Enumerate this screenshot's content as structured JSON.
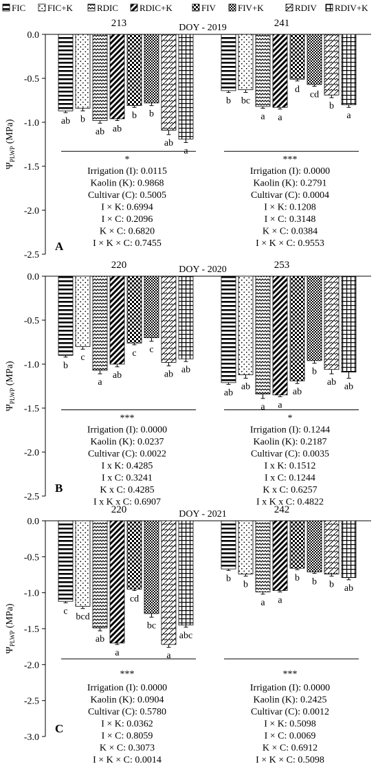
{
  "legend": [
    {
      "label": "FIC",
      "pattern": "hstripe"
    },
    {
      "label": "FIC+K",
      "pattern": "dots"
    },
    {
      "label": "RDIC",
      "pattern": "wave"
    },
    {
      "label": "RDIC+K",
      "pattern": "diag"
    },
    {
      "label": "FIV",
      "pattern": "check"
    },
    {
      "label": "FIV+K",
      "pattern": "fcheck"
    },
    {
      "label": "RDIV",
      "pattern": "zig"
    },
    {
      "label": "RDIV+K",
      "pattern": "grid"
    }
  ],
  "chart_data": [
    {
      "type": "bar",
      "panel_label": "A",
      "title": "DOY - 2019",
      "ylabel": "Ψ_PLWP (MPa)",
      "ylim": [
        -2.5,
        0
      ],
      "yticks": [
        "0.0",
        "-0.5",
        "-1.0",
        "-1.5",
        "-2.0",
        "-2.5"
      ],
      "categories": [
        "FIC",
        "FIC+K",
        "RDIC",
        "RDIC+K",
        "FIV",
        "FIV+K",
        "RDIV",
        "RDIV+K"
      ],
      "groups": [
        {
          "doy": "213",
          "values": [
            -0.87,
            -0.84,
            -0.98,
            -0.96,
            -0.81,
            -0.78,
            -1.09,
            -1.19
          ],
          "errors": [
            0.02,
            0.03,
            0.03,
            0.02,
            0.02,
            0.03,
            0.05,
            0.04
          ],
          "letters": [
            "ab",
            "b",
            "ab",
            "ab",
            "b",
            "b",
            "ab",
            "a"
          ],
          "significance": "*",
          "stats": [
            "Irrigation (I): 0.0115",
            "Kaolin (K): 0.9868",
            "Cultivar (C): 0.5005",
            "I × K: 0.6994",
            "I  × C: 0.2096",
            "K × C: 0.6820",
            "I × K × C: 0.7455"
          ]
        },
        {
          "doy": "241",
          "values": [
            -0.64,
            -0.63,
            -0.82,
            -0.83,
            -0.51,
            -0.57,
            -0.69,
            -0.8
          ],
          "errors": [
            0.02,
            0.03,
            0.02,
            0.02,
            0.02,
            0.02,
            0.03,
            0.03
          ],
          "letters": [
            "b",
            "bc",
            "a",
            "a",
            "d",
            "cd",
            "b",
            "a"
          ],
          "significance": "***",
          "stats": [
            "Irrigation (I): 0.0000",
            "Kaolin (K): 0.2791",
            "Cultivar (C): 0.0004",
            "I × K: 0.1208",
            "I  × C: 0.3148",
            "K × C: 0.0384",
            "I × K × C: 0.9553"
          ]
        }
      ]
    },
    {
      "type": "bar",
      "panel_label": "B",
      "title": "DOY - 2020",
      "ylabel": "Ψ_PLWP (MPa)",
      "ylim": [
        -2.5,
        0
      ],
      "yticks": [
        "0.0",
        "-0.5",
        "-1.0",
        "-1.5",
        "-2.0",
        "-2.5"
      ],
      "categories": [
        "FIC",
        "FIC+K",
        "RDIC",
        "RDIC+K",
        "FIV",
        "FIV+K",
        "RDIV",
        "RDIV+K"
      ],
      "groups": [
        {
          "doy": "220",
          "values": [
            -0.9,
            -0.8,
            -1.07,
            -1.0,
            -0.76,
            -0.7,
            -0.98,
            -0.94
          ],
          "errors": [
            0.02,
            0.03,
            0.04,
            0.03,
            0.02,
            0.04,
            0.04,
            0.03
          ],
          "letters": [
            "b",
            "c",
            "a",
            "ab",
            "c",
            "c",
            "ab",
            "ab"
          ],
          "significance": "***",
          "stats": [
            "Irrigation (I): 0.0000",
            "Kaolin (K):  0.0237",
            "Cultivar (C): 0.0022",
            "I x K: 0.4285",
            "I  x C: 0.3241",
            "K x C: 0.4285",
            "I x K x C: 0.6907"
          ]
        },
        {
          "doy": "253",
          "values": [
            -1.21,
            -1.12,
            -1.34,
            -1.35,
            -1.19,
            -0.96,
            -1.06,
            -1.09
          ],
          "errors": [
            0.02,
            0.04,
            0.05,
            0.02,
            0.03,
            0.03,
            0.05,
            0.07
          ],
          "letters": [
            "ab",
            "ab",
            "a",
            "a",
            "ab",
            "b",
            "ab",
            "ab"
          ],
          "significance": "*",
          "stats": [
            "Irrigation (I): 0.1244",
            "Kaolin (K): 0.2187",
            "Cultivar (C): 0.0035",
            "I x K: 0.1512",
            "I  x C: 0.1244",
            "K x C: 0.6257",
            "I x K x C: 0.4822"
          ]
        }
      ]
    },
    {
      "type": "bar",
      "panel_label": "C",
      "title": "DOY - 2021",
      "ylabel": "Ψ_PLWP (MPa)",
      "ylim": [
        -3.0,
        0
      ],
      "yticks": [
        "0.0",
        "-0.5",
        "-1.0",
        "-1.5",
        "-2.0",
        "-2.5",
        "-3.0"
      ],
      "categories": [
        "FIC",
        "FIC+K",
        "RDIC",
        "RDIC+K",
        "FIV",
        "FIV+K",
        "RDIV",
        "RDIV+K"
      ],
      "groups": [
        {
          "doy": "220",
          "values": [
            -1.12,
            -1.19,
            -1.49,
            -1.7,
            -0.95,
            -1.29,
            -1.72,
            -1.45
          ],
          "errors": [
            0.02,
            0.03,
            0.04,
            0.02,
            0.02,
            0.05,
            0.04,
            0.03
          ],
          "letters": [
            "c",
            "bcd",
            "ab",
            "a",
            "cd",
            "bc",
            "a",
            "abc"
          ],
          "significance": "***",
          "stats": [
            "Irrigation (I): 0.0000",
            "Kaolin (K): 0.0904",
            "Cultivar (C): 0.5780",
            "I × K: 0.0362",
            "I  × C: 0.8059",
            "K × C: 0.3073",
            "I × K × C: 0.0014"
          ]
        },
        {
          "doy": "242",
          "values": [
            -0.67,
            -0.74,
            -0.99,
            -0.97,
            -0.66,
            -0.71,
            -0.74,
            -0.79
          ],
          "errors": [
            0.02,
            0.03,
            0.03,
            0.02,
            0.02,
            0.02,
            0.03,
            0.03
          ],
          "letters": [
            "b",
            "b",
            "a",
            "a",
            "b",
            "b",
            "b",
            "ab"
          ],
          "significance": "***",
          "stats": [
            "Irrigation (I): 0.0000",
            "Kaolin (K): 0.2425",
            "Cultivar (C): 0.0012",
            "I × K: 0.5098",
            "I  × C: 0.0069",
            "K × C: 0.6912",
            "I × K × C: 0.5098"
          ]
        }
      ]
    }
  ]
}
